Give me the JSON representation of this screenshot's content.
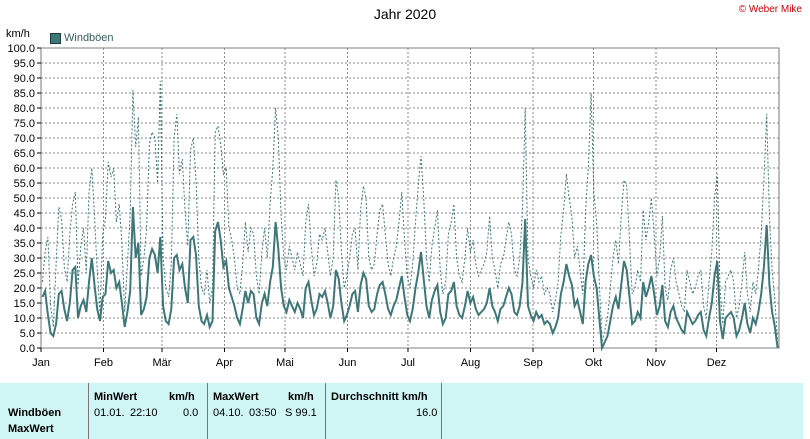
{
  "header": {
    "title": "Jahr 2020",
    "credit": "© Weber Mike",
    "unit": "km/h",
    "legend": "Windböen"
  },
  "colors": {
    "series": "#3d7778",
    "dotted": "#3d7778",
    "grid": "#8a8a8a",
    "table_bg": "#cff5f5"
  },
  "chart_data": {
    "type": "line",
    "title": "Jahr 2020",
    "ylabel": "km/h",
    "ylim": [
      0,
      100
    ],
    "yticks": [
      "0.0",
      "5.0",
      "10.0",
      "15.0",
      "20.0",
      "25.0",
      "30.0",
      "35.0",
      "40.0",
      "45.0",
      "50.0",
      "55.0",
      "60.0",
      "65.0",
      "70.0",
      "75.0",
      "80.0",
      "85.0",
      "90.0",
      "95.0",
      "100.0"
    ],
    "months": [
      "Jan",
      "Feb",
      "Mär",
      "Apr",
      "Mai",
      "Jun",
      "Jul",
      "Aug",
      "Sep",
      "Okt",
      "Nov",
      "Dez"
    ],
    "grid": true,
    "legend_position": "top-left",
    "series": [
      {
        "name": "Windböen",
        "values": [
          17,
          19,
          11,
          5,
          4,
          8,
          18,
          19,
          13,
          9,
          15,
          26,
          27,
          10,
          14,
          16,
          12,
          22,
          30,
          21,
          13,
          9,
          17,
          18,
          29,
          25,
          26,
          20,
          22,
          15,
          7,
          12,
          19,
          47,
          30,
          35,
          11,
          13,
          17,
          30,
          33,
          31,
          25,
          37,
          14,
          9,
          8,
          13,
          30,
          31,
          26,
          28,
          20,
          15,
          36,
          37,
          31,
          14,
          9,
          8,
          11,
          7,
          9,
          39,
          42,
          36,
          27,
          29,
          20,
          17,
          14,
          10,
          8,
          13,
          19,
          15,
          19,
          18,
          10,
          8,
          15,
          18,
          14,
          22,
          27,
          42,
          33,
          20,
          14,
          12,
          16,
          14,
          12,
          15,
          13,
          10,
          20,
          22,
          16,
          11,
          13,
          18,
          17,
          19,
          15,
          10,
          14,
          26,
          23,
          15,
          9,
          11,
          14,
          18,
          19,
          12,
          21,
          25,
          23,
          14,
          12,
          13,
          18,
          21,
          22,
          18,
          13,
          11,
          14,
          16,
          20,
          24,
          17,
          11,
          9,
          13,
          20,
          25,
          32,
          23,
          14,
          10,
          16,
          19,
          21,
          12,
          8,
          10,
          18,
          19,
          22,
          14,
          11,
          10,
          14,
          19,
          15,
          17,
          13,
          11,
          12,
          13,
          15,
          20,
          14,
          12,
          9,
          13,
          14,
          17,
          20,
          18,
          12,
          11,
          14,
          22,
          43,
          14,
          11,
          9,
          12,
          10,
          11,
          8,
          9,
          8,
          5,
          7,
          10,
          18,
          22,
          28,
          24,
          21,
          14,
          16,
          12,
          8,
          22,
          28,
          31,
          24,
          20,
          10,
          0,
          2,
          4,
          9,
          14,
          17,
          13,
          21,
          29,
          26,
          17,
          8,
          9,
          12,
          10,
          22,
          17,
          20,
          24,
          18,
          11,
          14,
          21,
          9,
          7,
          12,
          14,
          10,
          8,
          6,
          5,
          12,
          10,
          8,
          9,
          11,
          12,
          6,
          4,
          10,
          15,
          24,
          29,
          9,
          3,
          10,
          11,
          12,
          10,
          4,
          6,
          10,
          15,
          8,
          5,
          10,
          8,
          12,
          18,
          27,
          41,
          21,
          12,
          7,
          0
        ]
      },
      {
        "name": "MaxWert",
        "values": [
          22,
          32,
          37,
          14,
          7,
          28,
          47,
          43,
          27,
          22,
          38,
          48,
          52,
          21,
          34,
          40,
          25,
          52,
          60,
          44,
          26,
          12,
          38,
          43,
          62,
          57,
          60,
          42,
          48,
          35,
          12,
          28,
          45,
          86,
          67,
          77,
          24,
          30,
          40,
          68,
          72,
          70,
          55,
          89,
          30,
          20,
          17,
          28,
          70,
          78,
          58,
          63,
          46,
          34,
          66,
          70,
          56,
          30,
          20,
          18,
          26,
          15,
          20,
          72,
          74,
          68,
          58,
          60,
          40,
          36,
          30,
          20,
          18,
          28,
          42,
          32,
          40,
          38,
          24,
          18,
          32,
          40,
          30,
          48,
          60,
          80,
          70,
          44,
          30,
          26,
          34,
          30,
          26,
          32,
          28,
          24,
          42,
          48,
          34,
          24,
          28,
          38,
          36,
          40,
          32,
          24,
          30,
          56,
          50,
          32,
          20,
          24,
          30,
          38,
          40,
          26,
          46,
          54,
          50,
          30,
          26,
          28,
          38,
          46,
          48,
          38,
          28,
          24,
          30,
          34,
          42,
          52,
          36,
          24,
          20,
          28,
          42,
          54,
          64,
          50,
          30,
          22,
          34,
          40,
          46,
          26,
          18,
          22,
          38,
          42,
          48,
          30,
          24,
          22,
          30,
          40,
          32,
          36,
          28,
          24,
          26,
          28,
          32,
          44,
          30,
          26,
          20,
          28,
          30,
          36,
          42,
          38,
          26,
          24,
          30,
          46,
          80,
          30,
          24,
          20,
          26,
          22,
          24,
          18,
          20,
          18,
          12,
          16,
          22,
          38,
          46,
          58,
          50,
          44,
          30,
          34,
          26,
          18,
          46,
          60,
          85,
          52,
          42,
          22,
          2,
          6,
          10,
          20,
          30,
          36,
          28,
          44,
          56,
          54,
          36,
          18,
          20,
          26,
          22,
          46,
          36,
          42,
          50,
          38,
          24,
          30,
          44,
          20,
          16,
          26,
          30,
          22,
          18,
          14,
          12,
          26,
          22,
          18,
          20,
          24,
          26,
          14,
          10,
          22,
          32,
          50,
          58,
          20,
          8,
          22,
          24,
          26,
          22,
          10,
          14,
          22,
          32,
          18,
          12,
          22,
          18,
          26,
          38,
          56,
          78,
          44,
          26,
          16,
          2
        ]
      }
    ]
  },
  "table": {
    "headers": {
      "min": "MinWert",
      "min_unit": "km/h",
      "max": "MaxWert",
      "max_unit": "km/h",
      "avg": "Durchschnitt km/h"
    },
    "row_labels": [
      "Windböen",
      "MaxWert"
    ],
    "min_date": "01.01.",
    "min_time": "22:10",
    "min_value": "0.0",
    "max_date": "04.10.",
    "max_time": "03:50",
    "max_value": "S 99.1",
    "avg_value": "16.0"
  }
}
